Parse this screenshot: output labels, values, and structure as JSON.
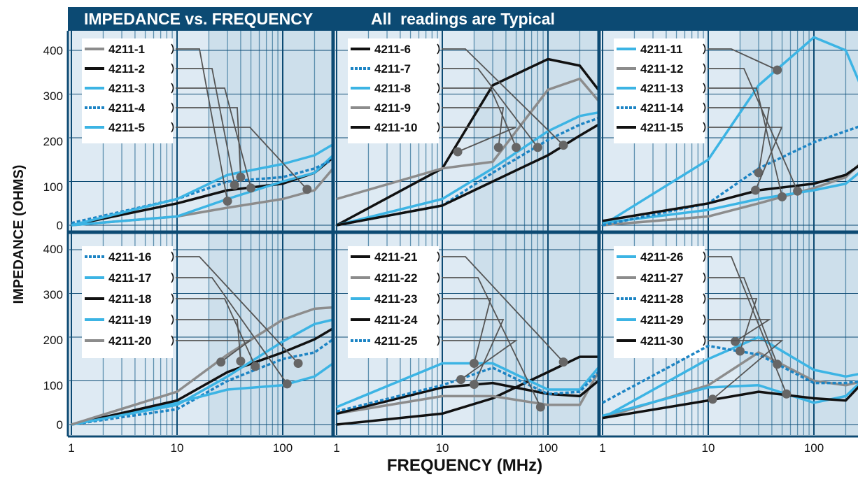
{
  "header": {
    "title": "IMPEDANCE vs. FREQUENCY",
    "subtitle": "All  readings are Typical"
  },
  "axes": {
    "ylabel": "IMPEDANCE (OHMS)",
    "xlabel": "FREQUENCY (MHz)",
    "y_ticks": [
      "400",
      "300",
      "200",
      "100",
      "0"
    ],
    "x_ticks": [
      "1",
      "10",
      "100"
    ]
  },
  "colors": {
    "header": "#0c4a73",
    "grid_major": "#0c4a73",
    "grid_minor": "#5c8fae",
    "plot_bg": "#deeaf3",
    "plot_bg_dense": "#c2d7e6",
    "black": "#111111",
    "gray": "#8c8c8c",
    "blue": "#3cb4e4",
    "dashed_blue": "#1c84c4",
    "leader": "#555555",
    "marker": "#666666"
  },
  "chart_data": [
    {
      "type": "line",
      "x_scale": "log",
      "xlim": [
        1,
        300
      ],
      "ylim": [
        0,
        400
      ],
      "series": [
        {
          "name": "4211-1",
          "style": "gray",
          "x": [
            1,
            10,
            30,
            100,
            200,
            300
          ],
          "y": [
            0,
            20,
            40,
            60,
            80,
            130
          ],
          "marker_x": 30,
          "marker_y": 55
        },
        {
          "name": "4211-2",
          "style": "black",
          "x": [
            1,
            10,
            30,
            100,
            200,
            300
          ],
          "y": [
            0,
            50,
            80,
            95,
            120,
            155
          ],
          "marker_x": 35,
          "marker_y": 92
        },
        {
          "name": "4211-3",
          "style": "blue",
          "x": [
            1,
            10,
            30,
            100,
            200,
            300
          ],
          "y": [
            0,
            20,
            60,
            100,
            120,
            160
          ],
          "marker_x": 50,
          "marker_y": 85
        },
        {
          "name": "4211-4",
          "style": "dashed_blue",
          "x": [
            1,
            10,
            30,
            100,
            200,
            300
          ],
          "y": [
            5,
            60,
            100,
            110,
            130,
            150
          ],
          "marker_x": 40,
          "marker_y": 110
        },
        {
          "name": "4211-5",
          "style": "blue",
          "x": [
            1,
            10,
            30,
            100,
            200,
            300
          ],
          "y": [
            0,
            60,
            115,
            140,
            160,
            185
          ],
          "marker_x": 170,
          "marker_y": 82
        }
      ]
    },
    {
      "type": "line",
      "x_scale": "log",
      "xlim": [
        1,
        300
      ],
      "ylim": [
        0,
        400
      ],
      "series": [
        {
          "name": "4211-6",
          "style": "black",
          "x": [
            1,
            10,
            30,
            100,
            200,
            300
          ],
          "y": [
            0,
            130,
            320,
            380,
            365,
            310
          ],
          "marker_x": 140,
          "marker_y": 183
        },
        {
          "name": "4211-7",
          "style": "dashed_blue",
          "x": [
            1,
            10,
            30,
            100,
            200,
            300
          ],
          "y": [
            0,
            45,
            120,
            195,
            230,
            245
          ],
          "marker_x": 80,
          "marker_y": 178
        },
        {
          "name": "4211-8",
          "style": "blue",
          "x": [
            1,
            10,
            30,
            100,
            200,
            300
          ],
          "y": [
            0,
            60,
            130,
            215,
            250,
            258
          ],
          "marker_x": 50,
          "marker_y": 178
        },
        {
          "name": "4211-9",
          "style": "gray",
          "x": [
            1,
            10,
            30,
            100,
            200,
            300
          ],
          "y": [
            60,
            130,
            145,
            310,
            335,
            285
          ],
          "marker_x": 34,
          "marker_y": 178
        },
        {
          "name": "4211-10",
          "style": "black",
          "x": [
            1,
            10,
            30,
            100,
            200,
            300
          ],
          "y": [
            0,
            45,
            100,
            160,
            205,
            230
          ],
          "marker_x": 14,
          "marker_y": 168
        }
      ]
    },
    {
      "type": "line",
      "x_scale": "log",
      "xlim": [
        1,
        300
      ],
      "ylim": [
        0,
        400
      ],
      "series": [
        {
          "name": "4211-11",
          "style": "blue",
          "x": [
            1,
            10,
            30,
            100,
            200,
            300
          ],
          "y": [
            0,
            150,
            320,
            430,
            400,
            300
          ],
          "marker_x": 45,
          "marker_y": 355
        },
        {
          "name": "4211-12",
          "style": "gray",
          "x": [
            1,
            10,
            30,
            100,
            200,
            300
          ],
          "y": [
            0,
            20,
            50,
            85,
            110,
            150
          ],
          "marker_x": 70,
          "marker_y": 78
        },
        {
          "name": "4211-13",
          "style": "blue",
          "x": [
            1,
            10,
            30,
            100,
            200,
            300
          ],
          "y": [
            5,
            35,
            60,
            80,
            95,
            130
          ],
          "marker_x": 50,
          "marker_y": 65
        },
        {
          "name": "4211-14",
          "style": "dashed_blue",
          "x": [
            1,
            10,
            30,
            100,
            200,
            300
          ],
          "y": [
            0,
            50,
            130,
            190,
            215,
            230
          ],
          "marker_x": 30,
          "marker_y": 120
        },
        {
          "name": "4211-15",
          "style": "black",
          "x": [
            1,
            10,
            30,
            100,
            200,
            300
          ],
          "y": [
            10,
            50,
            80,
            95,
            115,
            145
          ],
          "marker_x": 28,
          "marker_y": 80
        }
      ]
    },
    {
      "type": "line",
      "x_scale": "log",
      "xlim": [
        1,
        300
      ],
      "ylim": [
        0,
        400
      ],
      "series": [
        {
          "name": "4211-16",
          "style": "dashed_blue",
          "x": [
            1,
            10,
            30,
            100,
            200,
            300
          ],
          "y": [
            0,
            35,
            100,
            150,
            165,
            195
          ],
          "marker_x": 140,
          "marker_y": 140
        },
        {
          "name": "4211-17",
          "style": "blue",
          "x": [
            1,
            10,
            30,
            100,
            200,
            300
          ],
          "y": [
            0,
            50,
            80,
            90,
            110,
            140
          ],
          "marker_x": 110,
          "marker_y": 93
        },
        {
          "name": "4211-18",
          "style": "black",
          "x": [
            1,
            10,
            30,
            100,
            200,
            300
          ],
          "y": [
            0,
            55,
            120,
            165,
            195,
            220
          ],
          "marker_x": 55,
          "marker_y": 133
        },
        {
          "name": "4211-19",
          "style": "blue",
          "x": [
            1,
            10,
            30,
            100,
            200,
            300
          ],
          "y": [
            0,
            45,
            110,
            190,
            230,
            240
          ],
          "marker_x": 40,
          "marker_y": 145
        },
        {
          "name": "4211-20",
          "style": "gray",
          "x": [
            1,
            10,
            30,
            100,
            200,
            300
          ],
          "y": [
            0,
            75,
            160,
            240,
            265,
            268
          ],
          "marker_x": 26,
          "marker_y": 143
        }
      ]
    },
    {
      "type": "line",
      "x_scale": "log",
      "xlim": [
        1,
        300
      ],
      "ylim": [
        0,
        400
      ],
      "series": [
        {
          "name": "4211-21",
          "style": "black",
          "x": [
            1,
            10,
            30,
            100,
            200,
            300
          ],
          "y": [
            0,
            25,
            60,
            120,
            155,
            155
          ],
          "marker_x": 140,
          "marker_y": 143
        },
        {
          "name": "4211-22",
          "style": "gray",
          "x": [
            1,
            10,
            30,
            100,
            200,
            300
          ],
          "y": [
            25,
            65,
            65,
            45,
            45,
            120
          ],
          "marker_x": 85,
          "marker_y": 40
        },
        {
          "name": "4211-23",
          "style": "blue",
          "x": [
            1,
            10,
            30,
            100,
            200,
            300
          ],
          "y": [
            40,
            140,
            140,
            80,
            80,
            130
          ],
          "marker_x": 20,
          "marker_y": 140
        },
        {
          "name": "4211-24",
          "style": "black",
          "x": [
            1,
            10,
            30,
            100,
            200,
            300
          ],
          "y": [
            25,
            85,
            95,
            70,
            65,
            100
          ],
          "marker_x": 20,
          "marker_y": 92
        },
        {
          "name": "4211-25",
          "style": "dashed_blue",
          "x": [
            1,
            10,
            30,
            100,
            200,
            300
          ],
          "y": [
            30,
            90,
            130,
            70,
            75,
            120
          ],
          "marker_x": 15,
          "marker_y": 103
        }
      ]
    },
    {
      "type": "line",
      "x_scale": "log",
      "xlim": [
        1,
        300
      ],
      "ylim": [
        0,
        400
      ],
      "series": [
        {
          "name": "4211-26",
          "style": "blue",
          "x": [
            1,
            10,
            30,
            100,
            200,
            300
          ],
          "y": [
            15,
            150,
            200,
            125,
            110,
            118
          ],
          "marker_x": 55,
          "marker_y": 70
        },
        {
          "name": "4211-27",
          "style": "gray",
          "x": [
            1,
            10,
            30,
            100,
            200,
            300
          ],
          "y": [
            15,
            90,
            165,
            100,
            90,
            100
          ],
          "marker_x": 45,
          "marker_y": 138
        },
        {
          "name": "4211-28",
          "style": "dashed_blue",
          "x": [
            1,
            10,
            30,
            100,
            200,
            300
          ],
          "y": [
            50,
            180,
            160,
            95,
            95,
            100
          ],
          "marker_x": 20,
          "marker_y": 168
        },
        {
          "name": "4211-29",
          "style": "blue",
          "x": [
            1,
            10,
            30,
            100,
            200,
            300
          ],
          "y": [
            20,
            85,
            90,
            50,
            65,
            105
          ],
          "marker_x": 18,
          "marker_y": 190
        },
        {
          "name": "4211-30",
          "style": "black",
          "x": [
            1,
            10,
            30,
            100,
            200,
            300
          ],
          "y": [
            15,
            55,
            75,
            60,
            55,
            100
          ],
          "marker_x": 11,
          "marker_y": 58
        }
      ]
    }
  ]
}
